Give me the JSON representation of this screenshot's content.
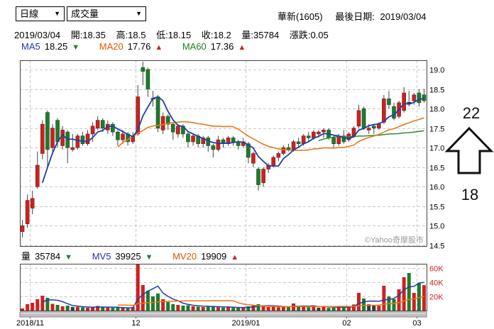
{
  "controls": {
    "period": "日線",
    "indicator": "成交量",
    "dropdown_arrow": "▼"
  },
  "title": {
    "stock": "華新(1605)",
    "date_label": "最後日期:",
    "date": "2019/03/04"
  },
  "quote": {
    "date": "2019/03/04",
    "open_label": "開:",
    "open": "18.35",
    "high_label": "高:",
    "high": "18.5",
    "low_label": "低:",
    "low": "18.15",
    "close_label": "收:",
    "close": "18.2",
    "vol_label": "量:",
    "vol": "35784",
    "chg_label": "漲跌:",
    "chg": "0.05"
  },
  "ma": {
    "ma5_label": "MA5",
    "ma5_value": "18.25",
    "ma5_arrow": "▼",
    "ma5_dir": "down",
    "ma20_label": "MA20",
    "ma20_value": "17.76",
    "ma20_arrow": "▲",
    "ma20_dir": "up",
    "ma60_label": "MA60",
    "ma60_value": "17.36",
    "ma60_arrow": "▲",
    "ma60_dir": "up"
  },
  "volume_header": {
    "vol_label": "量",
    "vol_value": "35784",
    "vol_arrow": "▼",
    "vol_dir": "down",
    "mv5_label": "MV5",
    "mv5_value": "39925",
    "mv5_arrow": "▼",
    "mv5_dir": "down",
    "mv20_label": "MV20",
    "mv20_value": "19909",
    "mv20_arrow": "▲",
    "mv20_dir": "up"
  },
  "watermark": "©Yahoo奇摩股市",
  "annotation": {
    "top_text": "22",
    "bottom_text": "18"
  },
  "colors": {
    "up": "#cc2222",
    "down": "#1e7b2c",
    "flat": "#3a3a3a",
    "ma5_line": "#1c3fa8",
    "ma20_line": "#e87818",
    "ma60_line": "#2e8b3a",
    "grid": "#c9c9c9",
    "border": "#444444",
    "axis_text": "#000000",
    "volume_axis_text": "#cc2222",
    "watermark_text": "#999999",
    "wick": "#444444"
  },
  "chart_data": {
    "type": "candlestick",
    "title": "華新(1605) 日線 + 成交量",
    "panes": [
      "price",
      "volume"
    ],
    "legend": [
      "MA5",
      "MA20",
      "MA60",
      "MV5",
      "MV20"
    ],
    "grid": true,
    "price_axis_side": "right",
    "price_ylim": [
      14.49,
      19.24
    ],
    "price_ticks": [
      "19.0",
      "18.5",
      "18.0",
      "17.5",
      "17.0",
      "16.5",
      "16.0",
      "15.5",
      "15.0",
      "14.5"
    ],
    "volume_ticks": [
      "60K",
      "40K",
      "20K"
    ],
    "x_ticks": [
      {
        "label": "2018/11",
        "at_index": 2
      },
      {
        "label": "12",
        "at_index": 23
      },
      {
        "label": "2019/01",
        "at_index": 45
      },
      {
        "label": "02",
        "at_index": 65
      },
      {
        "label": "03",
        "at_index": 79
      }
    ],
    "candles": {
      "columns": [
        "open",
        "high",
        "low",
        "close",
        "volume"
      ],
      "rows": [
        [
          14.85,
          15.15,
          14.7,
          15.0,
          3000
        ],
        [
          15.05,
          15.8,
          14.95,
          15.65,
          9000
        ],
        [
          15.45,
          15.9,
          15.3,
          15.7,
          11000
        ],
        [
          16.0,
          16.9,
          15.95,
          16.55,
          16000
        ],
        [
          16.85,
          17.7,
          16.7,
          17.6,
          21000
        ],
        [
          17.9,
          17.95,
          16.5,
          16.95,
          18000
        ],
        [
          17.0,
          17.6,
          16.9,
          17.5,
          9500
        ],
        [
          17.7,
          17.75,
          17.0,
          17.15,
          8000
        ],
        [
          17.05,
          17.55,
          16.95,
          17.45,
          6000
        ],
        [
          17.4,
          17.45,
          16.6,
          17.0,
          7000
        ],
        [
          16.95,
          17.35,
          16.9,
          17.0,
          5000
        ],
        [
          17.0,
          17.35,
          16.95,
          17.3,
          5200
        ],
        [
          17.3,
          17.4,
          17.05,
          17.1,
          4500
        ],
        [
          17.1,
          17.45,
          17.05,
          17.35,
          4000
        ],
        [
          17.35,
          17.65,
          17.15,
          17.55,
          5200
        ],
        [
          17.5,
          17.8,
          17.45,
          17.7,
          6500
        ],
        [
          17.7,
          17.75,
          17.4,
          17.5,
          4800
        ],
        [
          17.45,
          17.7,
          17.35,
          17.6,
          4200
        ],
        [
          17.6,
          17.65,
          17.3,
          17.4,
          3900
        ],
        [
          17.4,
          17.45,
          17.05,
          17.2,
          4600
        ],
        [
          17.2,
          17.45,
          17.1,
          17.35,
          3500
        ],
        [
          17.35,
          17.4,
          17.05,
          17.15,
          3200
        ],
        [
          17.15,
          17.4,
          17.1,
          17.3,
          5000
        ],
        [
          17.35,
          18.6,
          17.3,
          18.3,
          65000
        ],
        [
          19.05,
          19.2,
          18.6,
          18.95,
          36000
        ],
        [
          19.0,
          19.05,
          18.3,
          18.5,
          28000
        ],
        [
          18.25,
          18.45,
          18.05,
          18.25,
          20000
        ],
        [
          18.3,
          18.35,
          17.4,
          17.5,
          24000
        ],
        [
          17.45,
          17.9,
          17.35,
          17.8,
          16000
        ],
        [
          17.8,
          17.85,
          17.45,
          17.6,
          12000
        ],
        [
          17.6,
          17.65,
          17.2,
          17.4,
          9000
        ],
        [
          17.35,
          17.6,
          17.25,
          17.55,
          8000
        ],
        [
          17.55,
          17.6,
          17.25,
          17.35,
          7000
        ],
        [
          17.35,
          17.4,
          17.0,
          17.15,
          7500
        ],
        [
          17.15,
          17.35,
          17.05,
          17.3,
          6000
        ],
        [
          17.3,
          17.35,
          17.0,
          17.1,
          5500
        ],
        [
          17.1,
          17.3,
          17.0,
          17.25,
          5000
        ],
        [
          17.25,
          17.3,
          16.9,
          17.05,
          6200
        ],
        [
          17.05,
          17.1,
          16.75,
          16.95,
          5800
        ],
        [
          16.95,
          17.3,
          16.9,
          17.2,
          4800
        ],
        [
          17.2,
          17.25,
          17.0,
          17.1,
          4200
        ],
        [
          17.1,
          17.3,
          17.05,
          17.25,
          4600
        ],
        [
          17.25,
          17.3,
          17.05,
          17.15,
          3900
        ],
        [
          17.15,
          17.2,
          16.95,
          17.05,
          4400
        ],
        [
          17.05,
          17.25,
          17.0,
          17.15,
          4100
        ],
        [
          17.1,
          17.15,
          16.6,
          16.75,
          6000
        ],
        [
          16.6,
          16.9,
          16.5,
          16.85,
          7000
        ],
        [
          16.45,
          16.5,
          15.9,
          16.05,
          9000
        ],
        [
          16.1,
          16.5,
          16.0,
          16.45,
          7500
        ],
        [
          16.45,
          16.6,
          16.35,
          16.55,
          5000
        ],
        [
          16.55,
          16.8,
          16.5,
          16.75,
          5500
        ],
        [
          16.75,
          16.9,
          16.65,
          16.85,
          4800
        ],
        [
          16.85,
          17.05,
          16.8,
          17.0,
          6000
        ],
        [
          17.0,
          17.1,
          16.9,
          16.95,
          4500
        ],
        [
          16.95,
          17.2,
          16.9,
          17.15,
          10000
        ],
        [
          17.15,
          17.25,
          17.0,
          17.1,
          5200
        ],
        [
          17.1,
          17.35,
          17.05,
          17.3,
          6800
        ],
        [
          17.3,
          17.4,
          17.15,
          17.25,
          4800
        ],
        [
          17.25,
          17.45,
          17.2,
          17.4,
          7200
        ],
        [
          17.35,
          17.45,
          17.25,
          17.4,
          4100
        ],
        [
          17.4,
          17.5,
          17.25,
          17.45,
          6300
        ],
        [
          17.45,
          17.5,
          17.2,
          17.25,
          3800
        ],
        [
          17.25,
          17.3,
          17.0,
          17.1,
          4200
        ],
        [
          17.1,
          17.35,
          17.05,
          17.3,
          5600
        ],
        [
          17.3,
          17.45,
          17.1,
          17.15,
          3900
        ],
        [
          17.2,
          17.4,
          17.15,
          17.35,
          6500
        ],
        [
          17.3,
          17.55,
          17.25,
          17.5,
          8555
        ],
        [
          17.55,
          18.1,
          17.5,
          17.95,
          25000
        ],
        [
          18.0,
          18.05,
          17.45,
          17.5,
          17000
        ],
        [
          17.45,
          17.6,
          17.35,
          17.5,
          8800
        ],
        [
          17.55,
          17.6,
          17.35,
          17.5,
          7400
        ],
        [
          17.5,
          17.65,
          17.45,
          17.6,
          6800
        ],
        [
          17.65,
          18.35,
          17.6,
          18.25,
          35000
        ],
        [
          18.25,
          18.45,
          18.0,
          18.1,
          20000
        ],
        [
          18.05,
          18.15,
          17.7,
          17.75,
          16000
        ],
        [
          17.8,
          18.2,
          17.75,
          18.15,
          30000
        ],
        [
          17.95,
          18.55,
          17.9,
          18.4,
          47000
        ],
        [
          18.15,
          18.45,
          18.05,
          18.15,
          53000
        ],
        [
          18.2,
          18.4,
          18.1,
          18.35,
          25000
        ],
        [
          18.4,
          18.5,
          18.05,
          18.15,
          38841
        ],
        [
          18.35,
          18.5,
          18.15,
          18.2,
          35784
        ]
      ]
    },
    "overlays": {
      "price": [
        {
          "name": "MA5",
          "period": 5
        },
        {
          "name": "MA20",
          "period": 20
        },
        {
          "name": "MA60",
          "period": 60
        }
      ],
      "volume": [
        {
          "name": "MV5",
          "period": 5
        },
        {
          "name": "MV20",
          "period": 20
        }
      ]
    },
    "last_values": {
      "MA5": 18.25,
      "MA20": 17.76,
      "MA60": 17.36,
      "MV5": 39925,
      "MV20": 19909,
      "close": 18.2,
      "change": 0.05,
      "volume": 35784
    }
  }
}
